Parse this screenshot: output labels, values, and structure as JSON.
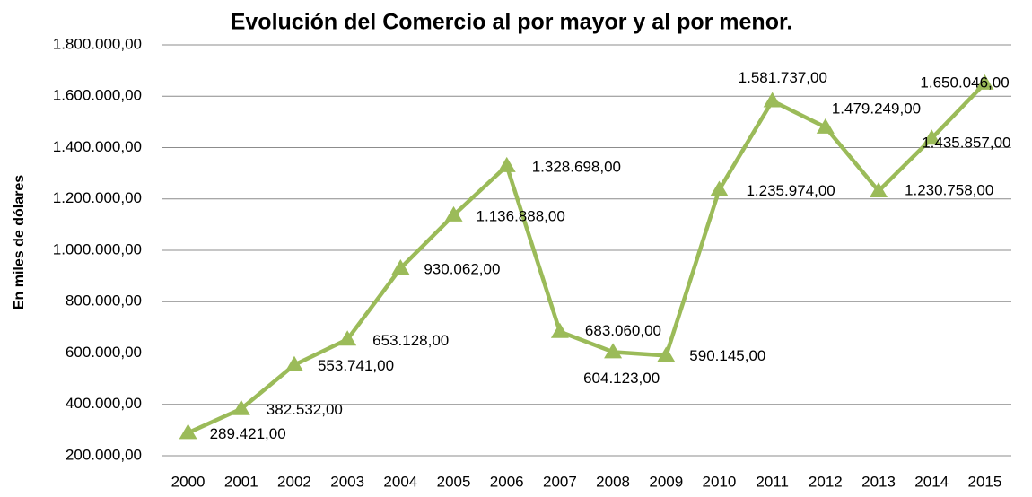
{
  "chart_data": {
    "type": "line",
    "title": "Evolución del Comercio al por mayor y al por menor.",
    "y_label": "En miles de dólares",
    "categories": [
      "2000",
      "2001",
      "2002",
      "2003",
      "2004",
      "2005",
      "2006",
      "2007",
      "2008",
      "2009",
      "2010",
      "2011",
      "2012",
      "2013",
      "2014",
      "2015"
    ],
    "series": [
      {
        "name": "Comercio al por mayor y al por menor",
        "color": "#9bbb59",
        "values": [
          289421,
          382532,
          553741,
          653128,
          930062,
          1136888,
          1328698,
          683060,
          604123,
          590145,
          1235974,
          1581737,
          1479249,
          1230758,
          1435857,
          1650046
        ],
        "value_labels": [
          "289.421,00",
          "382.532,00",
          "553.741,00",
          "653.128,00",
          "930.062,00",
          "1.136.888,00",
          "1.328.698,00",
          "683.060,00",
          "604.123,00",
          "590.145,00",
          "1.235.974,00",
          "1.581.737,00",
          "1.479.249,00",
          "1.230.758,00",
          "1.435.857,00",
          "1.650.046,00"
        ]
      }
    ],
    "ylim": [
      200000,
      1800000
    ],
    "yticks": [
      {
        "value": 200000,
        "label": "200.000,00"
      },
      {
        "value": 400000,
        "label": "400.000,00"
      },
      {
        "value": 600000,
        "label": "600.000,00"
      },
      {
        "value": 800000,
        "label": "800.000,00"
      },
      {
        "value": 1000000,
        "label": "1.000.000,00"
      },
      {
        "value": 1200000,
        "label": "1.200.000,00"
      },
      {
        "value": 1400000,
        "label": "1.400.000,00"
      },
      {
        "value": 1600000,
        "label": "1.600.000,00"
      },
      {
        "value": 1800000,
        "label": "1.800.000,00"
      }
    ],
    "grid": true
  }
}
